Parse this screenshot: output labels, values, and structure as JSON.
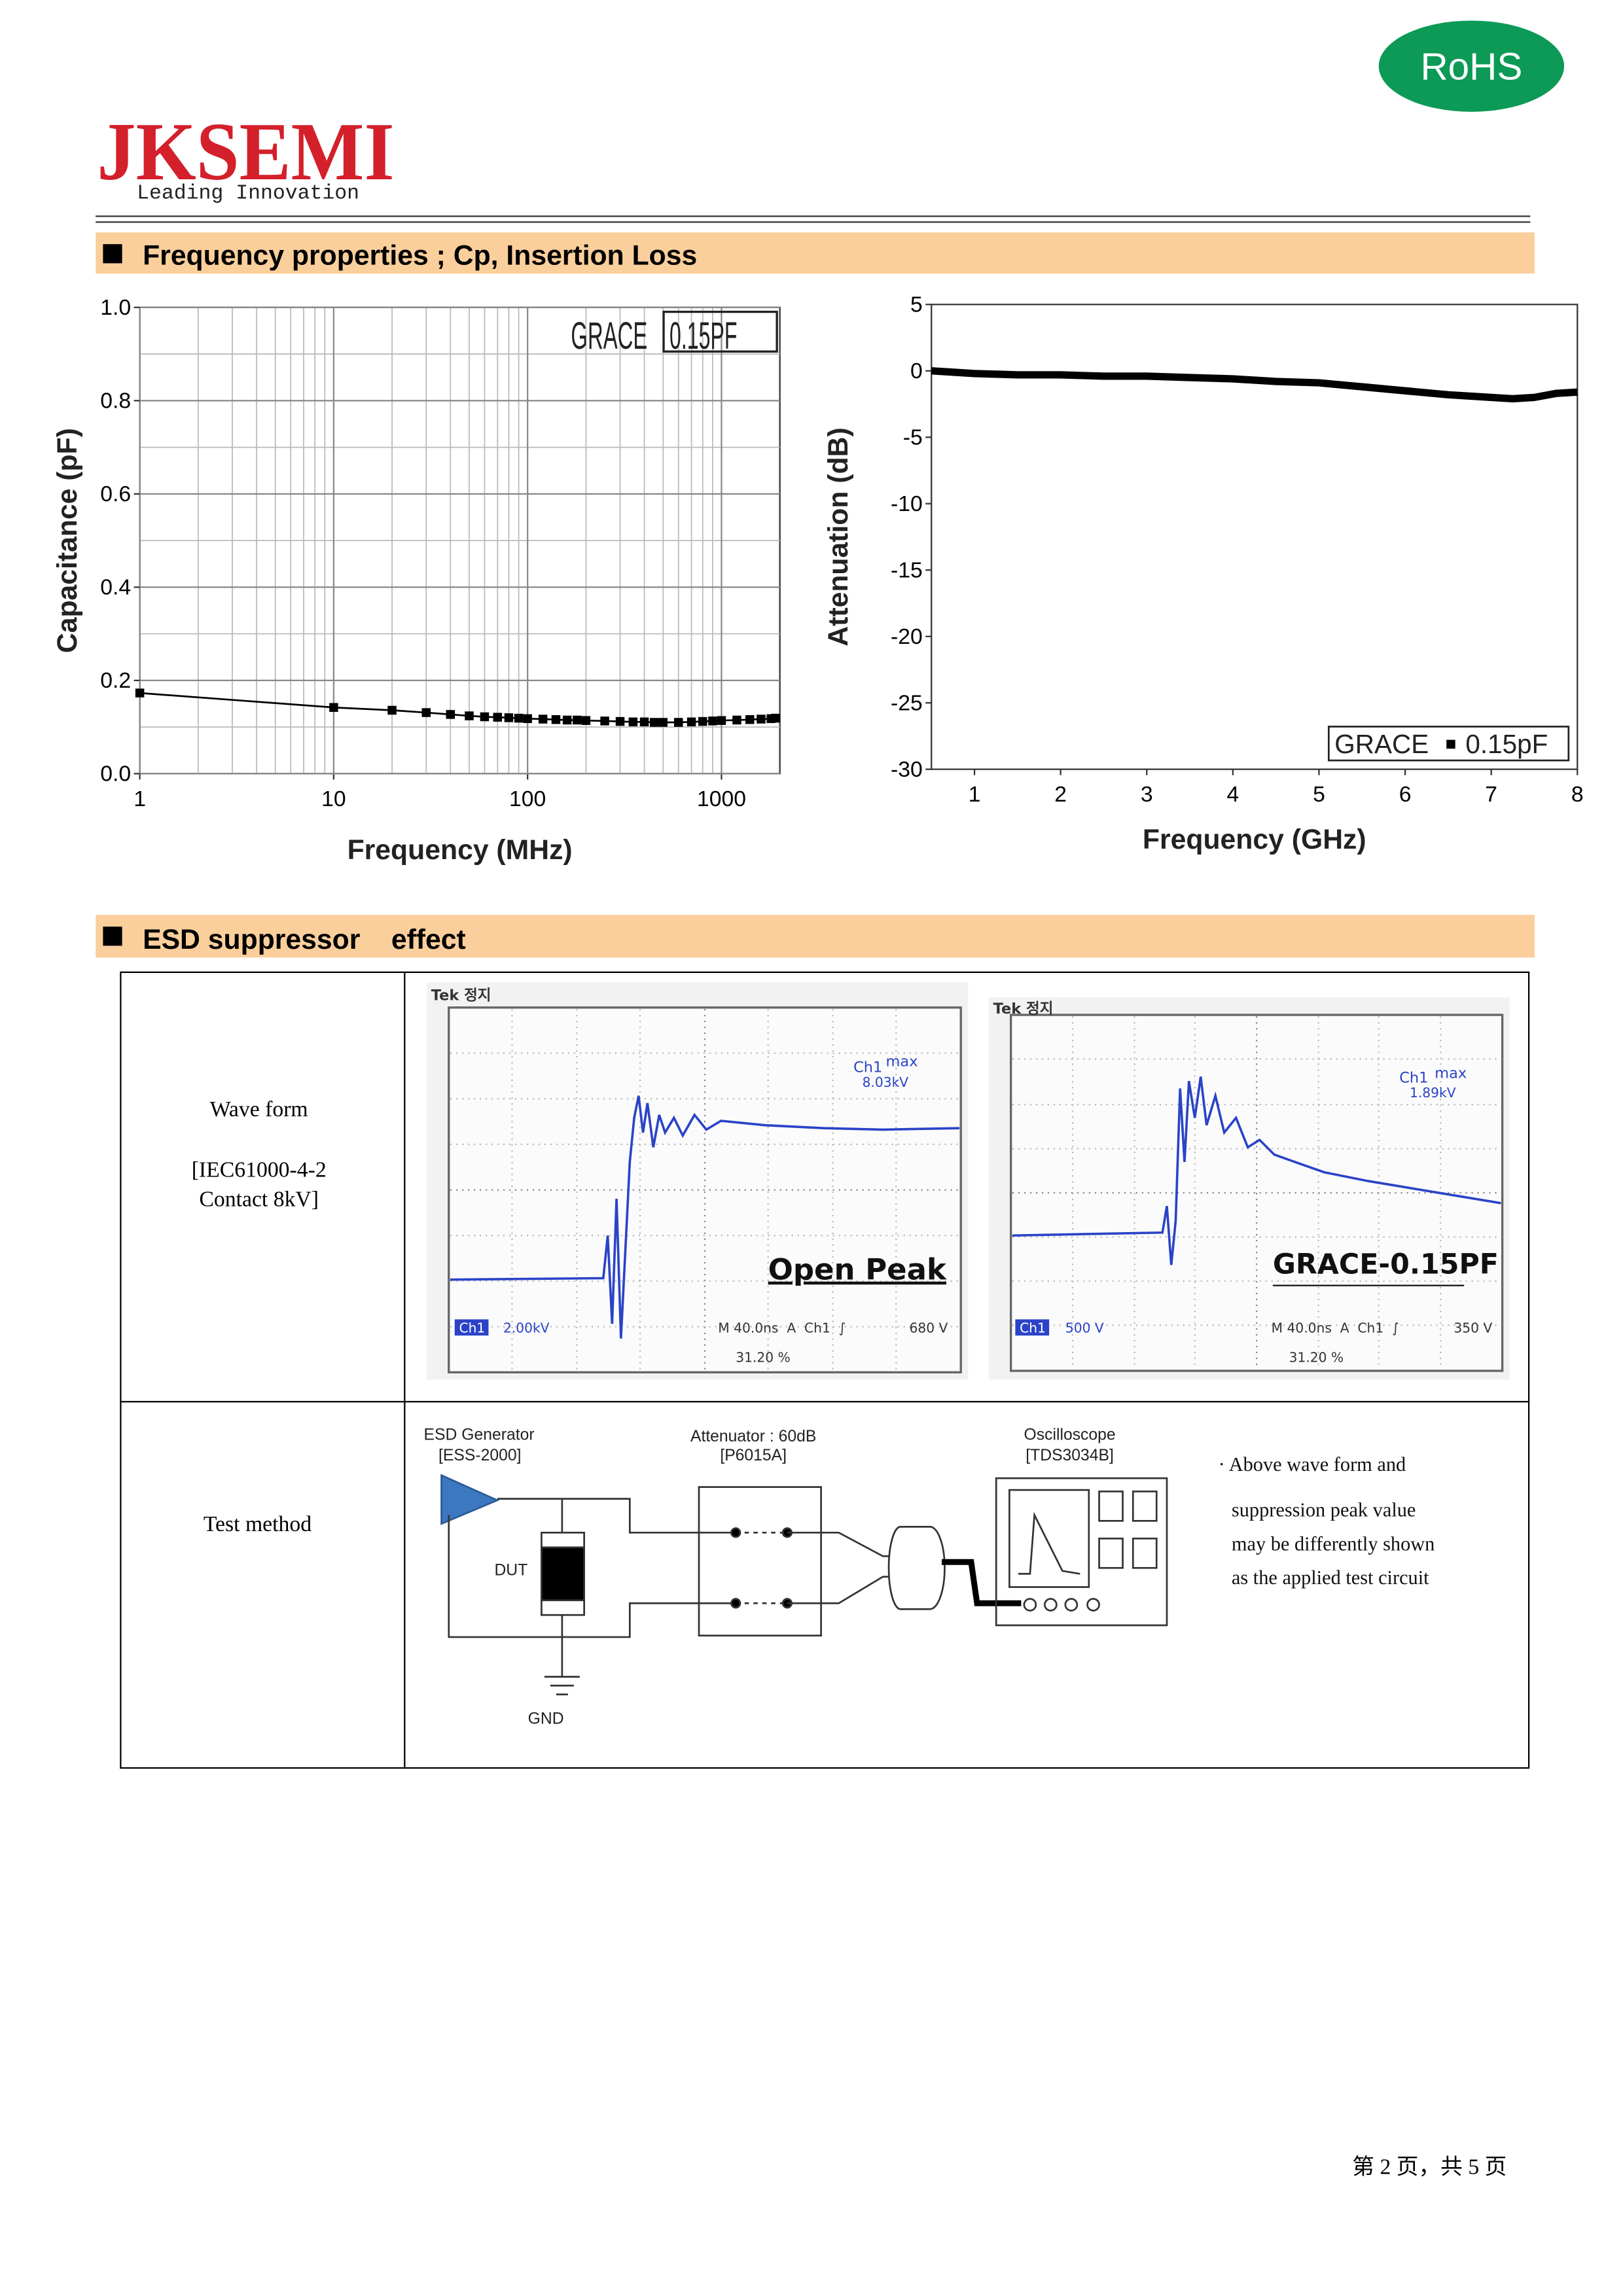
{
  "header": {
    "logo": "JKSEMI",
    "tagline": "Leading Innovation",
    "badge": "RoHS"
  },
  "sections": [
    {
      "title": "Frequency properties ; Cp, Insertion Loss"
    },
    {
      "title": "ESD suppressor    effect"
    }
  ],
  "chart_data": [
    {
      "type": "line",
      "xlabel": "Frequency (MHz)",
      "ylabel": "Capacitance (pF)",
      "xscale": "log",
      "xlim": [
        1,
        2000
      ],
      "xticks": [
        1,
        10,
        100,
        1000
      ],
      "ylim": [
        0,
        1
      ],
      "yticks": [
        {
          "value": 0,
          "label": "0.0"
        },
        0.2,
        0.4,
        0.6,
        0.8,
        {
          "value": 1,
          "label": "1.0"
        }
      ],
      "grid": true,
      "legend_note": "0.15PF",
      "x": [
        1,
        10,
        20,
        30,
        40,
        50,
        60,
        70,
        80,
        90,
        100,
        120,
        140,
        160,
        180,
        200,
        250,
        300,
        350,
        400,
        450,
        500,
        600,
        700,
        800,
        900,
        1000,
        1200,
        1400,
        1600,
        1800,
        1900
      ],
      "series": [
        {
          "name": "GRACE",
          "color": "#000000",
          "marker": "square",
          "width": 1.2,
          "values": [
            0.173,
            0.142,
            0.136,
            0.131,
            0.127,
            0.124,
            0.122,
            0.121,
            0.12,
            0.119,
            0.118,
            0.117,
            0.116,
            0.115,
            0.115,
            0.114,
            0.113,
            0.112,
            0.111,
            0.111,
            0.11,
            0.11,
            0.11,
            0.111,
            0.112,
            0.113,
            0.114,
            0.115,
            0.116,
            0.117,
            0.118,
            0.119
          ]
        }
      ]
    },
    {
      "type": "line",
      "xlabel": "Frequency (GHz)",
      "ylabel": "Attenuation (dB)",
      "xscale": "linear",
      "xlim": [
        0.5,
        8
      ],
      "xticks": [
        1,
        2,
        3,
        4,
        5,
        6,
        7,
        8
      ],
      "ylim": [
        -30,
        5
      ],
      "yticks": [
        5,
        0,
        -5,
        -10,
        -15,
        -20,
        -25,
        -30
      ],
      "grid": false,
      "legend_note": "0.15pF",
      "x": [
        0.5,
        1,
        1.5,
        2,
        2.5,
        3,
        3.5,
        4,
        4.5,
        5,
        5.5,
        6,
        6.5,
        7,
        7.25,
        7.5,
        7.75,
        8
      ],
      "series": [
        {
          "name": "GRACE",
          "color": "#000000",
          "marker": "none",
          "width": 5,
          "values": [
            0,
            -0.2,
            -0.3,
            -0.3,
            -0.4,
            -0.4,
            -0.5,
            -0.6,
            -0.8,
            -0.9,
            -1.2,
            -1.5,
            -1.8,
            -2.0,
            -2.1,
            -2.0,
            -1.7,
            -1.6
          ]
        }
      ]
    }
  ],
  "table": {
    "rows": [
      {
        "label": [
          "Wave form",
          "[IEC61000-4-2",
          "Contact 8kV]"
        ]
      },
      {
        "label": [
          "Test method"
        ]
      }
    ]
  },
  "scopes": [
    {
      "brand": "Tek 정지",
      "max_ch": "Ch1",
      "max": "max",
      "max_value": "8.03kV",
      "caption": "Open Peak",
      "ch": "Ch1",
      "scale": "2.00kV",
      "timebase": "M 40.0ns  A  Ch1  ∫",
      "trigger": "680 V",
      "position": "31.20 %"
    },
    {
      "brand": "Tek 정지",
      "max_ch": "Ch1",
      "max": "max",
      "max_value": "1.89kV",
      "caption": "GRACE-0.15PF",
      "ch": "Ch1",
      "scale": "500 V",
      "timebase": "M 40.0ns  A  Ch1  ∫",
      "trigger": "350 V",
      "position": "31.20 %"
    }
  ],
  "circuit": {
    "generator": [
      "ESD Generator",
      "[ESS-2000]"
    ],
    "attenuator": [
      "Attenuator : 60dB",
      "[P6015A]"
    ],
    "oscilloscope": [
      "Oscilloscope",
      "[TDS3034B]"
    ],
    "dut": "DUT",
    "gnd": "GND",
    "note": [
      "· Above wave form and",
      "suppression peak value",
      "may be differently shown",
      "as the applied test circuit"
    ]
  },
  "footer": "第 2 页，共 5 页"
}
